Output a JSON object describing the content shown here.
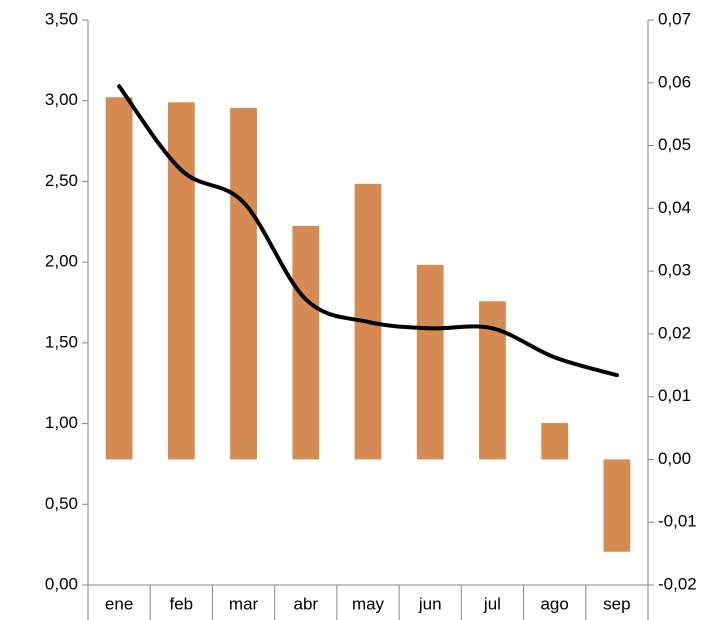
{
  "chart_data": {
    "type": "bar",
    "categories": [
      "ene",
      "feb",
      "mar",
      "abr",
      "may",
      "jun",
      "jul",
      "ago",
      "sep"
    ],
    "series": [
      {
        "type": "bar",
        "axis": "y2",
        "color": "#d68b52",
        "values": [
          0.0577,
          0.0569,
          0.056,
          0.0372,
          0.0439,
          0.031,
          0.0252,
          0.0058,
          -0.0147
        ]
      },
      {
        "type": "line",
        "axis": "y",
        "color": "#000000",
        "values": [
          3.09,
          2.57,
          2.37,
          1.77,
          1.63,
          1.59,
          1.59,
          1.41,
          1.3
        ]
      }
    ],
    "ylim": [
      0,
      3.5
    ],
    "yticks": [
      {
        "value": 0,
        "label": "0,00"
      },
      {
        "value": 0.5,
        "label": "0,50"
      },
      {
        "value": 1,
        "label": "1,00"
      },
      {
        "value": 1.5,
        "label": "1,50"
      },
      {
        "value": 2,
        "label": "2,00"
      },
      {
        "value": 2.5,
        "label": "2,50"
      },
      {
        "value": 3,
        "label": "3,00"
      },
      {
        "value": 3.5,
        "label": "3,50"
      }
    ],
    "y2lim": [
      -0.02,
      0.07
    ],
    "y2ticks": [
      {
        "value": -0.02,
        "label": "-0,02"
      },
      {
        "value": -0.01,
        "label": "-0,01"
      },
      {
        "value": 0,
        "label": "0,00"
      },
      {
        "value": 0.01,
        "label": "0,01"
      },
      {
        "value": 0.02,
        "label": "0,02"
      },
      {
        "value": 0.03,
        "label": "0,03"
      },
      {
        "value": 0.04,
        "label": "0,04"
      },
      {
        "value": 0.05,
        "label": "0,05"
      },
      {
        "value": 0.06,
        "label": "0,06"
      },
      {
        "value": 0.07,
        "label": "0,07"
      }
    ],
    "grid": false
  }
}
